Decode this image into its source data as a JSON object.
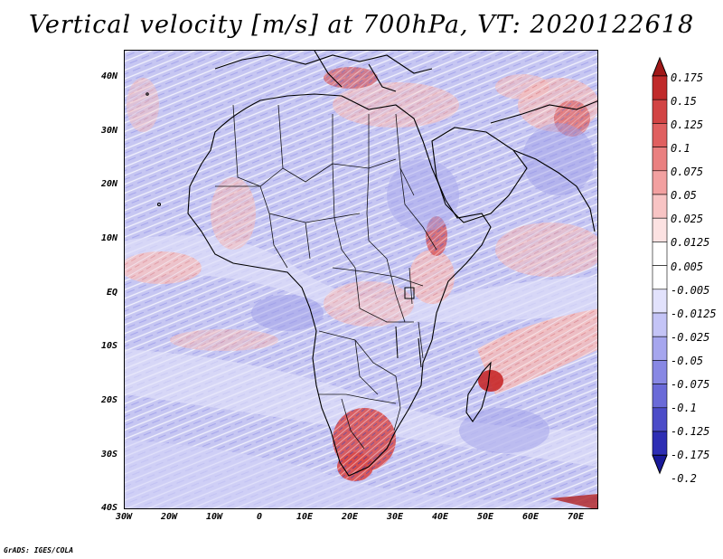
{
  "title": "Vertical velocity [m/s] at 700hPa, VT: 2020122618",
  "footer": "GrADS: IGES/COLA",
  "axes": {
    "y_labels": [
      "40N",
      "30N",
      "20N",
      "10N",
      "EQ",
      "10S",
      "20S",
      "30S",
      "40S"
    ],
    "x_labels": [
      "30W",
      "20W",
      "10W",
      "0",
      "10E",
      "20E",
      "30E",
      "40E",
      "50E",
      "60E",
      "70E"
    ]
  },
  "colorbar": {
    "labels": [
      "0.175",
      "0.15",
      "0.125",
      "0.1",
      "0.075",
      "0.05",
      "0.025",
      "0.0125",
      "0.005",
      "-0.005",
      "-0.0125",
      "-0.025",
      "-0.05",
      "-0.075",
      "-0.1",
      "-0.125",
      "-0.175",
      "-0.2"
    ],
    "colors": [
      "#a01818",
      "#c02a2a",
      "#d24444",
      "#e06060",
      "#ea8080",
      "#f2a0a0",
      "#f8c4c4",
      "#fce2e2",
      "#ffffff",
      "#ffffff",
      "#e2e2fc",
      "#c4c4f6",
      "#a6a6ee",
      "#8888e4",
      "#6a6ad8",
      "#4c4cc8",
      "#2e2eb4",
      "#1a1a9a"
    ]
  },
  "colors": {
    "background_blue": "#bcbcf0",
    "light_blue": "#d8d8f8",
    "pink": "#f6b8b8",
    "red": "#d23a3a",
    "outline": "#000000"
  }
}
